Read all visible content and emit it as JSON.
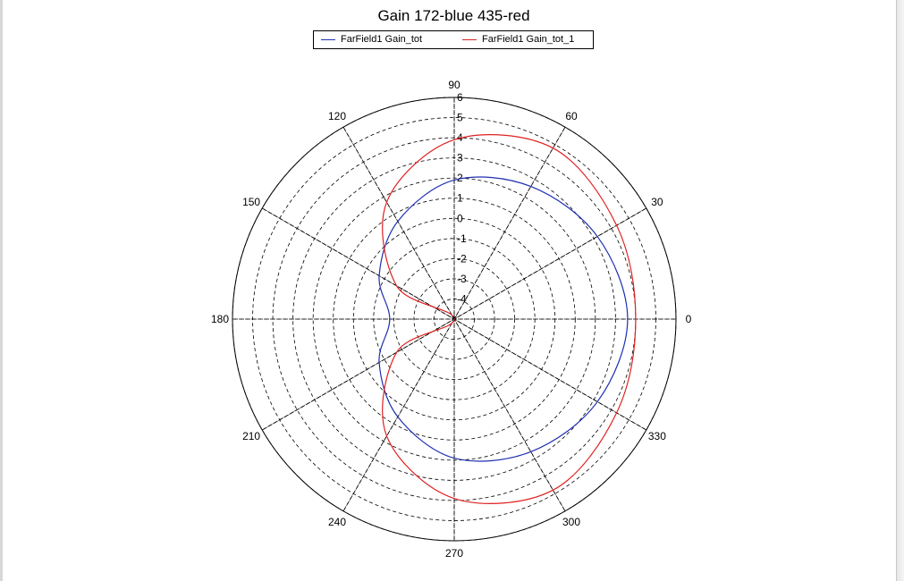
{
  "chart_data": {
    "type": "line",
    "subtype": "polar",
    "title": "Gain 172-blue 435-red",
    "legend_position": "top",
    "grid": true,
    "radial_axis": {
      "range": [
        -5,
        6
      ],
      "tick_labels": [
        "-4",
        "-3",
        "-2",
        "-1",
        "0",
        "1",
        "2",
        "3",
        "4",
        "5",
        "6"
      ]
    },
    "angular_axis": {
      "unit": "deg",
      "tick_labels": [
        "0",
        "30",
        "60",
        "90",
        "120",
        "150",
        "180",
        "210",
        "240",
        "270",
        "300",
        "330"
      ]
    },
    "series": [
      {
        "name": "FarField1 Gain_tot",
        "color": "#1f2fb0",
        "angles_deg": [
          0,
          30,
          60,
          90,
          120,
          150,
          180,
          210,
          240,
          270,
          300,
          330
        ],
        "values": [
          3.6,
          3.2,
          2.6,
          1.9,
          0.6,
          -0.7,
          -1.8,
          -0.7,
          0.6,
          1.9,
          2.6,
          3.2
        ]
      },
      {
        "name": "FarField1 Gain_tot_1",
        "color": "#e02020",
        "angles_deg": [
          0,
          30,
          60,
          90,
          120,
          150,
          180,
          210,
          240,
          270,
          300,
          330
        ],
        "values": [
          4.0,
          4.3,
          4.8,
          3.9,
          1.7,
          -1.7,
          -5.0,
          -1.7,
          1.7,
          3.9,
          4.8,
          4.3
        ]
      }
    ]
  }
}
